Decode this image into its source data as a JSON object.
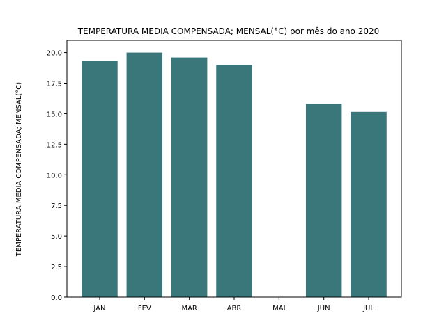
{
  "chart_data": {
    "type": "bar",
    "title": "TEMPERATURA MEDIA COMPENSADA; MENSAL(°C) por mês do ano 2020",
    "xlabel": "",
    "ylabel": "TEMPERATURA MEDIA COMPENSADA; MENSAL(°C)",
    "categories": [
      "JAN",
      "FEV",
      "MAR",
      "ABR",
      "MAI",
      "JUN",
      "JUL"
    ],
    "values": [
      19.3,
      20.0,
      19.6,
      19.0,
      0,
      15.8,
      15.15
    ],
    "ylim": [
      0,
      21.0
    ],
    "yticks": [
      "0.0",
      "2.5",
      "5.0",
      "7.5",
      "10.0",
      "12.5",
      "15.0",
      "17.5",
      "20.0"
    ],
    "bar_color": "#39777b",
    "grid": false,
    "legend": "none"
  }
}
